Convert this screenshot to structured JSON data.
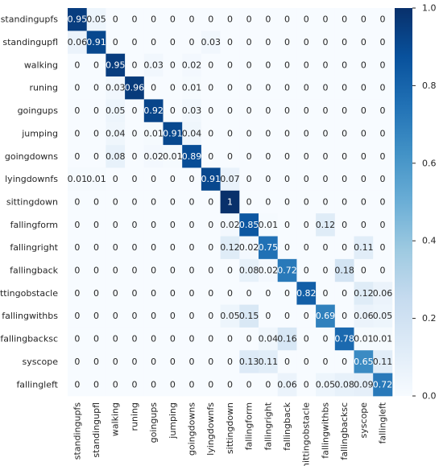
{
  "chart_data": {
    "type": "heatmap",
    "title": "",
    "xlabel": "",
    "ylabel": "",
    "labels": [
      "standingupfs",
      "standingupfl",
      "walking",
      "runing",
      "goingups",
      "jumping",
      "goingdowns",
      "lyingdownfs",
      "sittingdown",
      "fallingform",
      "fallingright",
      "fallingback",
      "hittingobstacle",
      "fallingwithbs",
      "fallingbacksc",
      "syscope",
      "fallingleft"
    ],
    "matrix": [
      [
        0.95,
        0.05,
        0,
        0,
        0,
        0,
        0,
        0,
        0,
        0,
        0,
        0,
        0,
        0,
        0,
        0,
        0
      ],
      [
        0.06,
        0.91,
        0,
        0,
        0,
        0,
        0,
        0.03,
        0,
        0,
        0,
        0,
        0,
        0,
        0,
        0,
        0
      ],
      [
        0,
        0,
        0.95,
        0,
        0.03,
        0,
        0.02,
        0,
        0,
        0,
        0,
        0,
        0,
        0,
        0,
        0,
        0
      ],
      [
        0,
        0,
        0.03,
        0.96,
        0,
        0,
        0.01,
        0,
        0,
        0,
        0,
        0,
        0,
        0,
        0,
        0,
        0
      ],
      [
        0,
        0,
        0.05,
        0,
        0.92,
        0,
        0.03,
        0,
        0,
        0,
        0,
        0,
        0,
        0,
        0,
        0,
        0
      ],
      [
        0,
        0,
        0.04,
        0,
        0.01,
        0.91,
        0.04,
        0,
        0,
        0,
        0,
        0,
        0,
        0,
        0,
        0,
        0
      ],
      [
        0,
        0,
        0.08,
        0,
        0.02,
        0.01,
        0.89,
        0,
        0,
        0,
        0,
        0,
        0,
        0,
        0,
        0,
        0
      ],
      [
        0.01,
        0.01,
        0,
        0,
        0,
        0,
        0,
        0.91,
        0.07,
        0,
        0,
        0,
        0,
        0,
        0,
        0,
        0
      ],
      [
        0,
        0,
        0,
        0,
        0,
        0,
        0,
        0,
        1,
        0,
        0,
        0,
        0,
        0,
        0,
        0,
        0
      ],
      [
        0,
        0,
        0,
        0,
        0,
        0,
        0,
        0,
        0.02,
        0.85,
        0.01,
        0,
        0,
        0.12,
        0,
        0,
        0
      ],
      [
        0,
        0,
        0,
        0,
        0,
        0,
        0,
        0,
        0.12,
        0.02,
        0.75,
        0,
        0,
        0,
        0,
        0.11,
        0
      ],
      [
        0,
        0,
        0,
        0,
        0,
        0,
        0,
        0,
        0,
        0.08,
        0.02,
        0.72,
        0,
        0,
        0.18,
        0,
        0
      ],
      [
        0,
        0,
        0,
        0,
        0,
        0,
        0,
        0,
        0,
        0,
        0,
        0,
        0.82,
        0,
        0,
        0.12,
        0.06
      ],
      [
        0,
        0,
        0,
        0,
        0,
        0,
        0,
        0,
        0.05,
        0.15,
        0,
        0,
        0,
        0.69,
        0,
        0.06,
        0.05
      ],
      [
        0,
        0,
        0,
        0,
        0,
        0,
        0,
        0,
        0,
        0,
        0.04,
        0.16,
        0,
        0,
        0.78,
        0.01,
        0.01
      ],
      [
        0,
        0,
        0,
        0,
        0,
        0,
        0,
        0,
        0,
        0.13,
        0.11,
        0,
        0,
        0,
        0,
        0.65,
        0.11
      ],
      [
        0,
        0,
        0,
        0,
        0,
        0,
        0,
        0,
        0,
        0,
        0,
        0.06,
        0,
        0.05,
        0.08,
        0.09,
        0.72
      ]
    ],
    "value_labels": [
      [
        "0.95",
        "0.05",
        "0",
        "0",
        "0",
        "0",
        "0",
        "0",
        "0",
        "0",
        "0",
        "0",
        "0",
        "0",
        "0",
        "0",
        "0"
      ],
      [
        "0.06",
        "0.91",
        "0",
        "0",
        "0",
        "0",
        "0",
        "0.03",
        "0",
        "0",
        "0",
        "0",
        "0",
        "0",
        "0",
        "0",
        "0"
      ],
      [
        "0",
        "0",
        "0.95",
        "0",
        "0.03",
        "0",
        "0.02",
        "0",
        "0",
        "0",
        "0",
        "0",
        "0",
        "0",
        "0",
        "0",
        "0"
      ],
      [
        "0",
        "0",
        "0.03",
        "0.96",
        "0",
        "0",
        "0.01",
        "0",
        "0",
        "0",
        "0",
        "0",
        "0",
        "0",
        "0",
        "0",
        "0"
      ],
      [
        "0",
        "0",
        "0.05",
        "0",
        "0.92",
        "0",
        "0.03",
        "0",
        "0",
        "0",
        "0",
        "0",
        "0",
        "0",
        "0",
        "0",
        "0"
      ],
      [
        "0",
        "0",
        "0.04",
        "0",
        "0.01",
        "0.91",
        "0.04",
        "0",
        "0",
        "0",
        "0",
        "0",
        "0",
        "0",
        "0",
        "0",
        "0"
      ],
      [
        "0",
        "0",
        "0.08",
        "0",
        "0.02",
        "0.01",
        "0.89",
        "0",
        "0",
        "0",
        "0",
        "0",
        "0",
        "0",
        "0",
        "0",
        "0"
      ],
      [
        "0.01",
        "0.01",
        "0",
        "0",
        "0",
        "0",
        "0",
        "0.91",
        "0.07",
        "0",
        "0",
        "0",
        "0",
        "0",
        "0",
        "0",
        "0"
      ],
      [
        "0",
        "0",
        "0",
        "0",
        "0",
        "0",
        "0",
        "0",
        "1",
        "0",
        "0",
        "0",
        "0",
        "0",
        "0",
        "0",
        "0"
      ],
      [
        "0",
        "0",
        "0",
        "0",
        "0",
        "0",
        "0",
        "0",
        "0.02",
        "0.85",
        "0.01",
        "0",
        "0",
        "0.12",
        "0",
        "0",
        "0"
      ],
      [
        "0",
        "0",
        "0",
        "0",
        "0",
        "0",
        "0",
        "0",
        "0.12",
        "0.02",
        "0.75",
        "0",
        "0",
        "0",
        "0",
        "0.11",
        "0"
      ],
      [
        "0",
        "0",
        "0",
        "0",
        "0",
        "0",
        "0",
        "0",
        "0",
        "0.08",
        "0.02",
        "0.72",
        "0",
        "0",
        "0.18",
        "0",
        "0"
      ],
      [
        "0",
        "0",
        "0",
        "0",
        "0",
        "0",
        "0",
        "0",
        "0",
        "0",
        "0",
        "0",
        "0.82",
        "0",
        "0",
        "0.12",
        "0.06"
      ],
      [
        "0",
        "0",
        "0",
        "0",
        "0",
        "0",
        "0",
        "0",
        "0.05",
        "0.15",
        "0",
        "0",
        "0",
        "0.69",
        "0",
        "0.06",
        "0.05"
      ],
      [
        "0",
        "0",
        "0",
        "0",
        "0",
        "0",
        "0",
        "0",
        "0",
        "0",
        "0.04",
        "0.16",
        "0",
        "0",
        "0.78",
        "0.01",
        "0.01"
      ],
      [
        "0",
        "0",
        "0",
        "0",
        "0",
        "0",
        "0",
        "0",
        "0",
        "0.13",
        "0.11",
        "0",
        "0",
        "0",
        "0",
        "0.65",
        "0.11"
      ],
      [
        "0",
        "0",
        "0",
        "0",
        "0",
        "0",
        "0",
        "0",
        "0",
        "0",
        "0",
        "0.06",
        "0",
        "0.05",
        "0.08",
        "0.09",
        "0.72"
      ]
    ],
    "vlim": [
      0,
      1
    ],
    "colormap": "Blues",
    "colorbar_ticks": [
      "0.0",
      "0.2",
      "0.4",
      "0.6",
      "0.8",
      "1.0"
    ],
    "colorbar_tick_values": [
      0,
      0.2,
      0.4,
      0.6,
      0.8,
      1.0
    ],
    "colors": {
      "low": "#f7fbff",
      "high": "#08306b",
      "text_dark": "#262626",
      "text_light": "#ffffff"
    },
    "grid": false
  }
}
